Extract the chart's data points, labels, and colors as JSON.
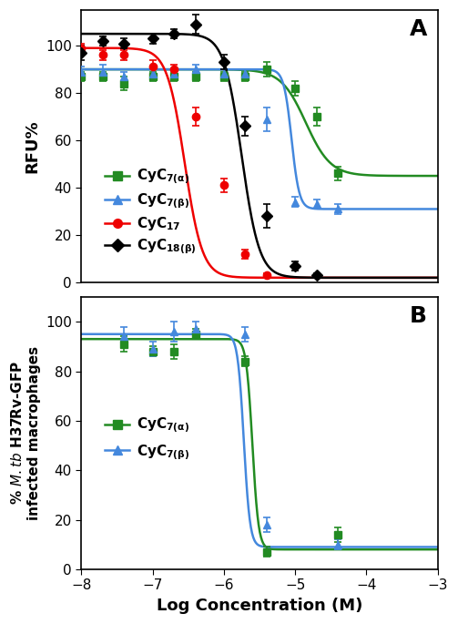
{
  "panel_A": {
    "title": "A",
    "ylabel": "RFU%",
    "ylim": [
      0,
      115
    ],
    "yticks": [
      0,
      20,
      40,
      60,
      80,
      100
    ],
    "xlim": [
      -8,
      -3
    ],
    "series": {
      "CyC7a": {
        "color": "#228B22",
        "marker": "s",
        "label": "CyC$_{7(\\alpha)}$",
        "x_data": [
          -8.0,
          -7.7,
          -7.4,
          -7.0,
          -6.7,
          -6.4,
          -6.0,
          -5.7,
          -5.4,
          -5.0,
          -4.7,
          -4.4
        ],
        "y_data": [
          87,
          87,
          84,
          87,
          87,
          87,
          87,
          87,
          90,
          82,
          70,
          46
        ],
        "yerr": [
          2,
          2,
          3,
          2,
          2,
          2,
          2,
          2,
          3,
          3,
          4,
          3
        ],
        "ec50": -4.85,
        "hill": 2.5,
        "top": 90,
        "bottom": 45
      },
      "CyC7b": {
        "color": "#4488DD",
        "marker": "^",
        "label": "CyC$_{7(\\beta)}$",
        "x_data": [
          -8.0,
          -7.7,
          -7.4,
          -7.0,
          -6.7,
          -6.4,
          -6.0,
          -5.7,
          -5.4,
          -5.0,
          -4.7,
          -4.4
        ],
        "y_data": [
          89,
          89,
          87,
          88,
          88,
          90,
          88,
          88,
          69,
          34,
          33,
          31
        ],
        "yerr": [
          2,
          3,
          2,
          2,
          2,
          2,
          2,
          2,
          5,
          2,
          2,
          2
        ],
        "ec50": -5.05,
        "hill": 8.0,
        "top": 90,
        "bottom": 31
      },
      "CyC17": {
        "color": "#EE0000",
        "marker": "o",
        "label": "CyC$_{17}$",
        "x_data": [
          -8.0,
          -7.7,
          -7.4,
          -7.0,
          -6.7,
          -6.4,
          -6.0,
          -5.7,
          -5.4
        ],
        "y_data": [
          99,
          96,
          96,
          91,
          90,
          70,
          41,
          12,
          3
        ],
        "yerr": [
          2,
          2,
          2,
          3,
          2,
          4,
          3,
          2,
          1
        ],
        "ec50": -6.55,
        "hill": 3.5,
        "top": 99,
        "bottom": 2
      },
      "CyC18b": {
        "color": "#000000",
        "marker": "D",
        "label": "CyC$_{18(\\beta)}$",
        "x_data": [
          -8.0,
          -7.7,
          -7.4,
          -7.0,
          -6.7,
          -6.4,
          -6.0,
          -5.7,
          -5.4,
          -5.0,
          -4.7
        ],
        "y_data": [
          97,
          102,
          101,
          103,
          105,
          109,
          93,
          66,
          28,
          7,
          3
        ],
        "yerr": [
          3,
          2,
          2,
          2,
          2,
          4,
          3,
          4,
          5,
          2,
          1
        ],
        "ec50": -5.75,
        "hill": 3.5,
        "top": 105,
        "bottom": 2
      }
    }
  },
  "panel_B": {
    "title": "B",
    "xlabel": "Log Concentration (M)",
    "ylim": [
      0,
      110
    ],
    "yticks": [
      0,
      20,
      40,
      60,
      80,
      100
    ],
    "xlim": [
      -8,
      -3
    ],
    "xticks": [
      -8,
      -7,
      -6,
      -5,
      -4,
      -3
    ],
    "series": {
      "CyC7a": {
        "color": "#228B22",
        "marker": "s",
        "label": "CyC$_{7(\\alpha)}$",
        "x_data": [
          -7.4,
          -7.0,
          -6.7,
          -6.4,
          -5.7,
          -5.4,
          -4.4
        ],
        "y_data": [
          91,
          88,
          88,
          95,
          84,
          7,
          14
        ],
        "yerr": [
          3,
          2,
          3,
          2,
          2,
          2,
          3
        ],
        "ec50": -5.6,
        "hill": 10.0,
        "top": 93,
        "bottom": 8
      },
      "CyC7b": {
        "color": "#4488DD",
        "marker": "^",
        "label": "CyC$_{7(\\beta)}$",
        "x_data": [
          -7.4,
          -7.0,
          -6.7,
          -6.4,
          -5.7,
          -5.4,
          -4.4
        ],
        "y_data": [
          94,
          89,
          96,
          97,
          95,
          18,
          10
        ],
        "yerr": [
          4,
          3,
          4,
          3,
          3,
          3,
          2
        ],
        "ec50": -5.72,
        "hill": 10.0,
        "top": 95,
        "bottom": 9
      }
    }
  }
}
